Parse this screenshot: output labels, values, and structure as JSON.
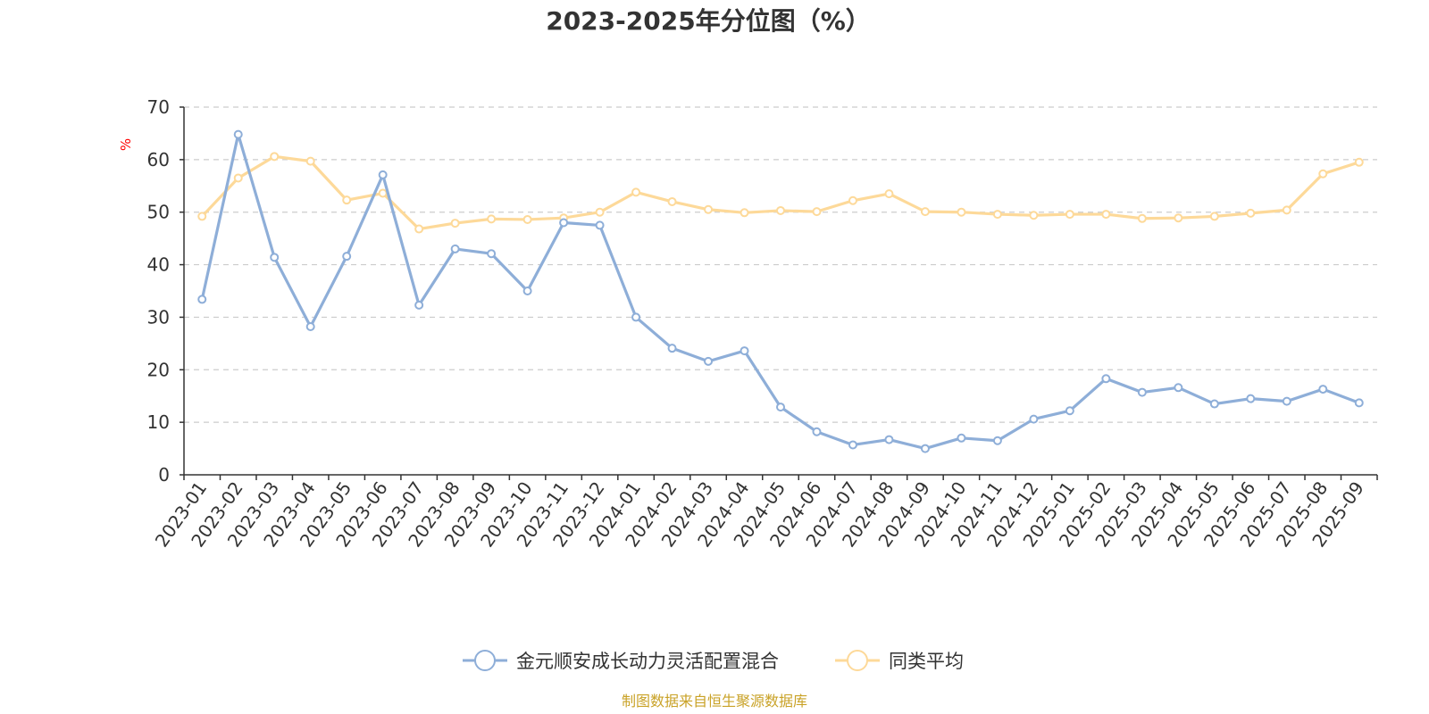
{
  "chart_data": {
    "type": "line",
    "title": "2023-2025年分位图（%）",
    "ylabel": "%",
    "xlabel": "",
    "ylim": [
      0,
      70
    ],
    "yticks": [
      0,
      10,
      20,
      30,
      40,
      50,
      60,
      70
    ],
    "grid": true,
    "legend_position": "bottom",
    "categories": [
      "2023-01",
      "2023-02",
      "2023-03",
      "2023-04",
      "2023-05",
      "2023-06",
      "2023-07",
      "2023-08",
      "2023-09",
      "2023-10",
      "2023-11",
      "2023-12",
      "2024-01",
      "2024-02",
      "2024-03",
      "2024-04",
      "2024-05",
      "2024-06",
      "2024-07",
      "2024-08",
      "2024-09",
      "2024-10",
      "2024-11",
      "2024-12",
      "2025-01",
      "2025-02",
      "2025-03",
      "2025-04",
      "2025-05",
      "2025-06",
      "2025-07",
      "2025-08",
      "2025-09"
    ],
    "series": [
      {
        "name": "金元顺安成长动力灵活配置混合",
        "color": "#8eaed8",
        "values": [
          33.4,
          64.8,
          41.4,
          28.2,
          41.6,
          57.1,
          32.3,
          43.0,
          42.1,
          35.0,
          48.0,
          47.5,
          30.0,
          24.1,
          21.6,
          23.6,
          12.9,
          8.2,
          5.7,
          6.7,
          5.0,
          7.0,
          6.5,
          10.6,
          12.2,
          18.3,
          15.7,
          16.6,
          13.5,
          14.5,
          14.0,
          16.3,
          13.7
        ]
      },
      {
        "name": "同类平均",
        "color": "#fdd999",
        "values": [
          49.2,
          56.5,
          60.6,
          59.7,
          52.3,
          53.6,
          46.8,
          47.9,
          48.7,
          48.6,
          48.9,
          50.0,
          53.8,
          52.0,
          50.5,
          49.9,
          50.3,
          50.1,
          52.2,
          53.5,
          50.1,
          50.0,
          49.6,
          49.4,
          49.6,
          49.6,
          48.8,
          48.9,
          49.2,
          49.8,
          50.4,
          57.3,
          59.5
        ]
      }
    ]
  },
  "source_text": "制图数据来自恒生聚源数据库",
  "colors": {
    "axis": "#333333",
    "grid": "#cccccc",
    "source": "#c9a227",
    "unit": "#ff0000"
  }
}
